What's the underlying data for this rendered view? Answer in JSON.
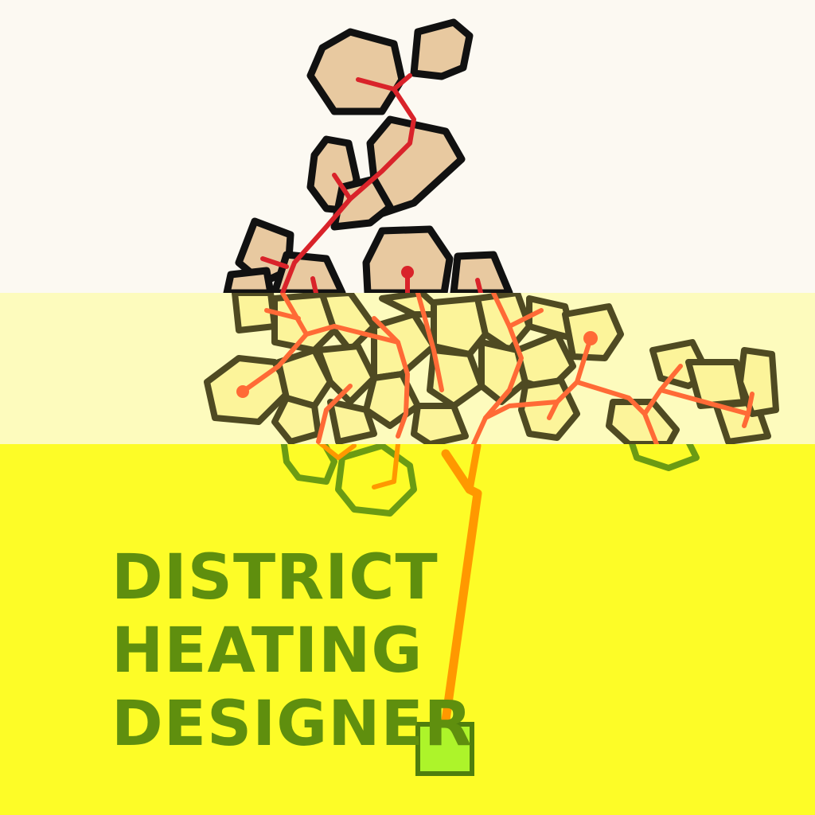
{
  "title": {
    "line1": "DISTRICT",
    "line2": "HEATING",
    "line3": "DESIGNER"
  },
  "colors": {
    "top_background": "#fcf9f2",
    "mid_background": "#fdfbbd",
    "bottom_background": "#fdfc27",
    "top_building_fill": "#e8c9a0",
    "top_building_stroke": "#111111",
    "top_pipe": "#d9232a",
    "mid_building_fill": "#fcf49a",
    "mid_building_stroke": "#4f4a22",
    "mid_pipe": "#ff6a36",
    "bottom_building_stroke": "#6b9b13",
    "bottom_pipe": "#ff9800",
    "plant_fill": "#adf42a",
    "plant_stroke": "#4f7e0d",
    "title_color": "#5f8f0e"
  }
}
